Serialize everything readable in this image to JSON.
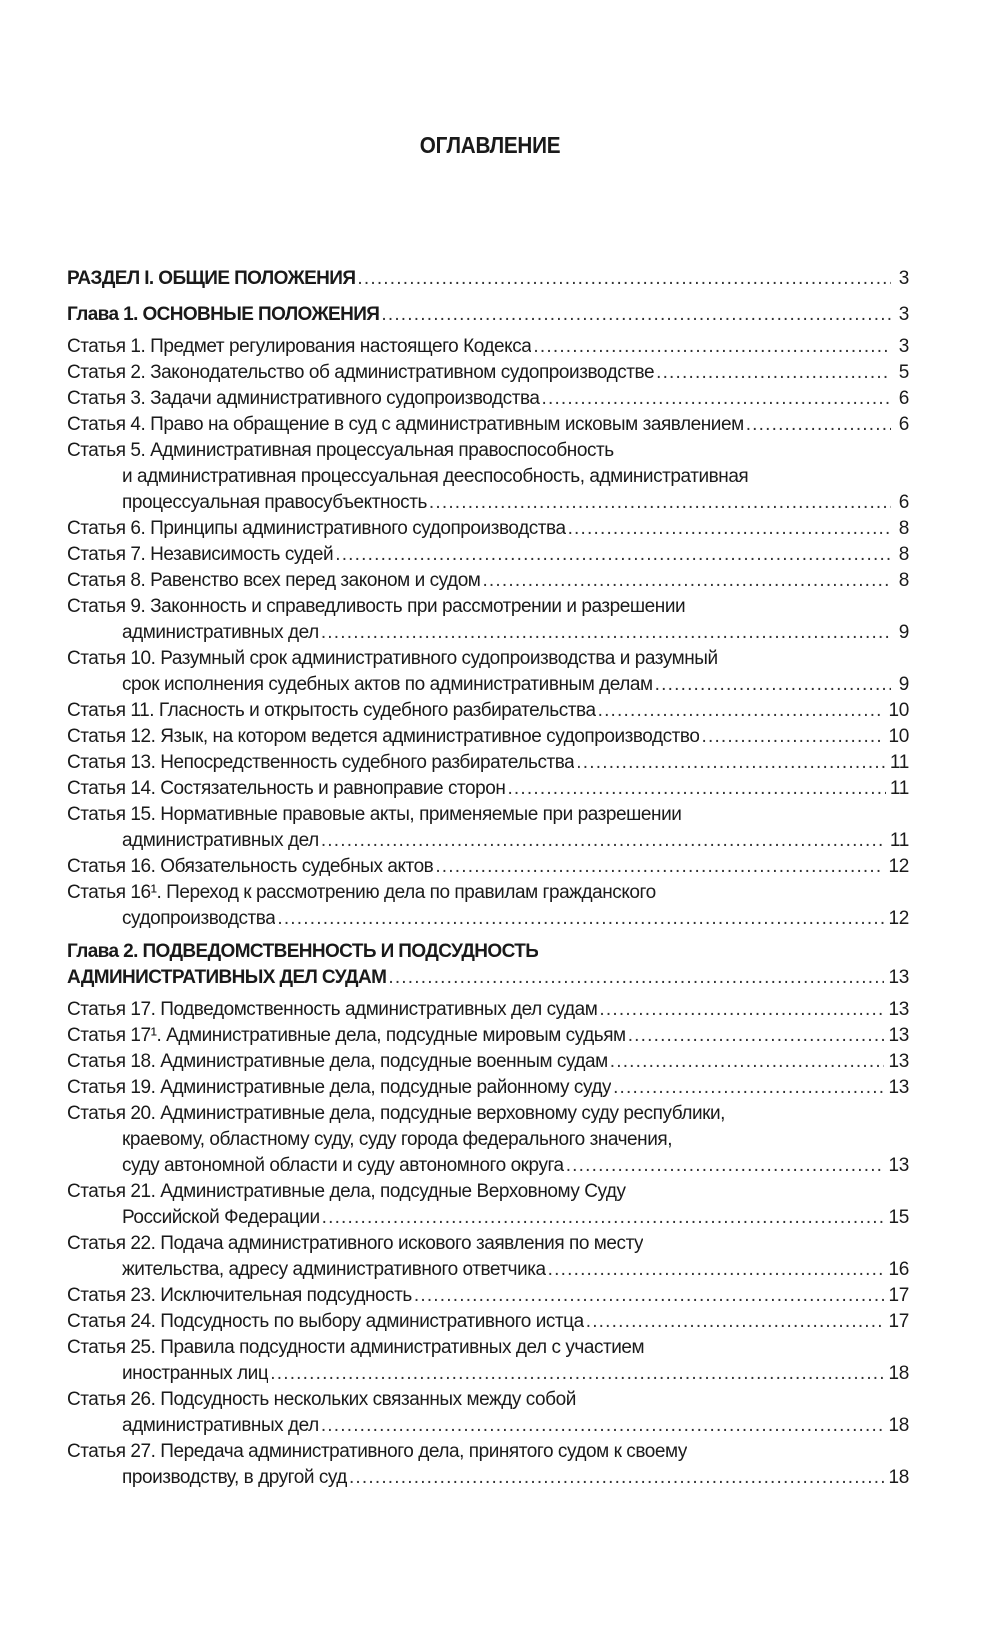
{
  "title": "ОГЛАВЛЕНИЕ",
  "entries": [
    {
      "kind": "part",
      "lines": [
        "РАЗДЕЛ I. ОБЩИЕ ПОЛОЖЕНИЯ"
      ],
      "page": "3"
    },
    {
      "kind": "chapter",
      "lines": [
        "Глава 1. ОСНОВНЫЕ ПОЛОЖЕНИЯ"
      ],
      "page": "3"
    },
    {
      "kind": "article",
      "lines": [
        "Статья 1. Предмет регулирования настоящего Кодекса"
      ],
      "page": "3"
    },
    {
      "kind": "article",
      "lines": [
        "Статья 2. Законодательство об административном судопроизводстве"
      ],
      "page": "5"
    },
    {
      "kind": "article",
      "lines": [
        "Статья 3. Задачи административного судопроизводства"
      ],
      "page": "6"
    },
    {
      "kind": "article",
      "lines": [
        "Статья 4. Право на обращение в суд с административным исковым заявлением"
      ],
      "page": "6"
    },
    {
      "kind": "article",
      "lines": [
        "Статья 5. Административная процессуальная правоспособность",
        "и административная процессуальная дееспособность, административная",
        "процессуальная правосубъектность"
      ],
      "page": "6"
    },
    {
      "kind": "article",
      "lines": [
        "Статья 6. Принципы административного судопроизводства"
      ],
      "page": "8"
    },
    {
      "kind": "article",
      "lines": [
        "Статья 7. Независимость судей"
      ],
      "page": "8"
    },
    {
      "kind": "article",
      "lines": [
        "Статья 8. Равенство всех перед законом и судом"
      ],
      "page": "8"
    },
    {
      "kind": "article",
      "lines": [
        "Статья 9. Законность и справедливость при рассмотрении и разрешении",
        "административных дел"
      ],
      "page": "9"
    },
    {
      "kind": "article",
      "lines": [
        "Статья 10. Разумный срок административного судопроизводства и разумный",
        "срок исполнения судебных актов по административным делам"
      ],
      "page": "9"
    },
    {
      "kind": "article",
      "lines": [
        "Статья 11. Гласность и открытость судебного разбирательства"
      ],
      "page": "10"
    },
    {
      "kind": "article",
      "lines": [
        "Статья 12. Язык, на котором ведется административное судопроизводство"
      ],
      "page": "10"
    },
    {
      "kind": "article",
      "lines": [
        "Статья 13. Непосредственность судебного разбирательства"
      ],
      "page": "11"
    },
    {
      "kind": "article",
      "lines": [
        "Статья 14. Состязательность и равноправие сторон"
      ],
      "page": "11"
    },
    {
      "kind": "article",
      "lines": [
        "Статья 15. Нормативные правовые акты, применяемые при разрешении",
        "административных дел"
      ],
      "page": "11"
    },
    {
      "kind": "article",
      "lines": [
        "Статья 16. Обязательность судебных актов"
      ],
      "page": "12"
    },
    {
      "kind": "article",
      "lines": [
        "Статья 16¹. Переход к рассмотрению дела по правилам гражданского",
        "судопроизводства"
      ],
      "page": "12"
    },
    {
      "kind": "chapter",
      "lines": [
        "Глава 2. ПОДВЕДОМСТВЕННОСТЬ И ПОДСУДНОСТЬ",
        "АДМИНИСТРАТИВНЫХ ДЕЛ СУДАМ"
      ],
      "page": "13"
    },
    {
      "kind": "article",
      "lines": [
        "Статья 17. Подведомственность административных дел судам"
      ],
      "page": "13"
    },
    {
      "kind": "article",
      "lines": [
        "Статья 17¹. Административные дела, подсудные мировым судьям"
      ],
      "page": "13"
    },
    {
      "kind": "article",
      "lines": [
        "Статья 18. Административные дела, подсудные военным судам"
      ],
      "page": "13"
    },
    {
      "kind": "article",
      "lines": [
        "Статья 19. Административные дела, подсудные районному суду"
      ],
      "page": "13"
    },
    {
      "kind": "article",
      "lines": [
        "Статья 20. Административные дела, подсудные верховному суду республики,",
        "краевому, областному суду, суду города федерального значения,",
        "суду автономной области и суду автономного округа"
      ],
      "page": "13"
    },
    {
      "kind": "article",
      "lines": [
        "Статья 21. Административные дела, подсудные Верховному Суду",
        "Российской Федерации"
      ],
      "page": "15"
    },
    {
      "kind": "article",
      "lines": [
        "Статья 22. Подача административного искового заявления по месту",
        "жительства, адресу административного ответчика"
      ],
      "page": "16"
    },
    {
      "kind": "article",
      "lines": [
        "Статья 23. Исключительная подсудность"
      ],
      "page": "17"
    },
    {
      "kind": "article",
      "lines": [
        "Статья 24. Подсудность по выбору административного истца"
      ],
      "page": "17"
    },
    {
      "kind": "article",
      "lines": [
        "Статья 25. Правила подсудности административных дел с участием",
        "иностранных лиц"
      ],
      "page": "18"
    },
    {
      "kind": "article",
      "lines": [
        "Статья 26. Подсудность нескольких связанных между собой",
        "административных дел"
      ],
      "page": "18"
    },
    {
      "kind": "article",
      "lines": [
        "Статья 27. Передача административного дела, принятого судом к своему",
        "производству, в другой суд"
      ],
      "page": "18"
    }
  ]
}
